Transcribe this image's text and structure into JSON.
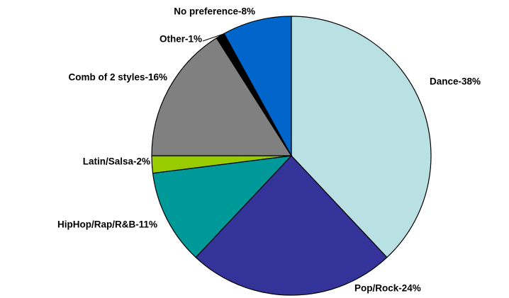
{
  "chart_data": {
    "type": "pie",
    "values": [
      38,
      24,
      11,
      2,
      16,
      1,
      8
    ],
    "value_labels": [
      "Dance-38%",
      "Pop/Rock-24%",
      "HipHop/Rap/R&B-11%",
      "Latin/Salsa-2%",
      "Comb of 2 styles-16%",
      "Other-1%",
      "No preference-8%"
    ],
    "colors": [
      "#b9e0e3",
      "#333399",
      "#009999",
      "#99cc00",
      "#808080",
      "#000000",
      "#0066cc"
    ]
  }
}
